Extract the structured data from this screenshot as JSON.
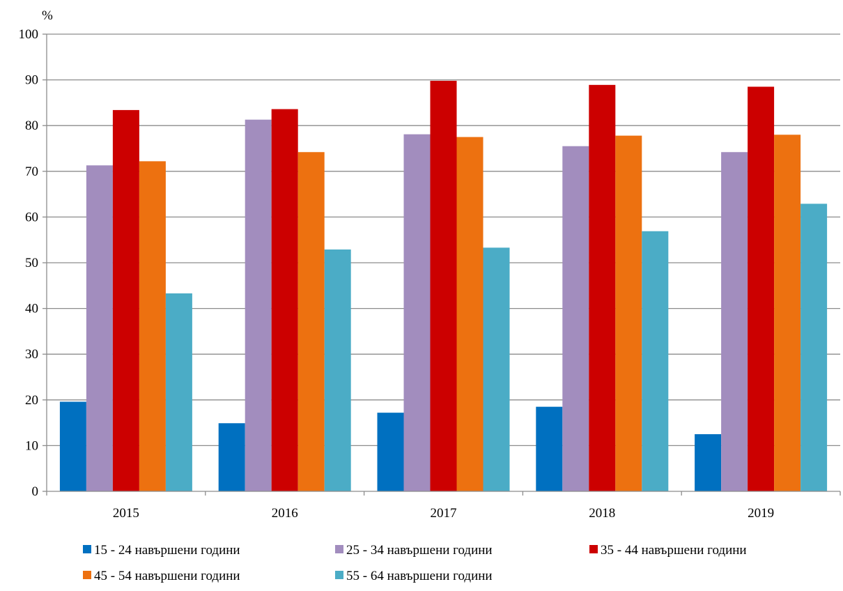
{
  "chart_data": {
    "type": "bar",
    "unit_label": "%",
    "categories": [
      "2015",
      "2016",
      "2017",
      "2018",
      "2019"
    ],
    "ylim": [
      0,
      100
    ],
    "yticks": [
      0,
      10,
      20,
      30,
      40,
      50,
      60,
      70,
      80,
      90,
      100
    ],
    "grid": true,
    "legend_position": "bottom",
    "series": [
      {
        "name": "15 - 24 навършени години",
        "color": "#0070C0",
        "values": [
          19.6,
          14.9,
          17.2,
          18.5,
          12.5
        ]
      },
      {
        "name": "25 - 34 навършени години",
        "color": "#A28DBE",
        "values": [
          71.3,
          81.3,
          78.1,
          75.5,
          74.2
        ]
      },
      {
        "name": "35 - 44 навършени години",
        "color": "#CC0000",
        "values": [
          83.4,
          83.6,
          89.8,
          88.9,
          88.5
        ]
      },
      {
        "name": "45 - 54 навършени години",
        "color": "#ED7110",
        "values": [
          72.2,
          74.2,
          77.5,
          77.8,
          78.0
        ]
      },
      {
        "name": "55 - 64 навършени години",
        "color": "#4BACC6",
        "values": [
          43.3,
          52.9,
          53.3,
          56.9,
          62.9
        ]
      }
    ]
  }
}
